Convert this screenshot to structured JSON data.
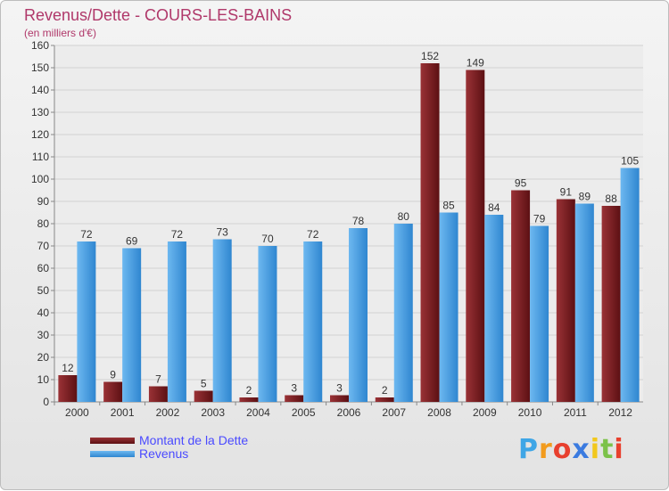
{
  "chart_data": {
    "type": "bar",
    "title": "Revenus/Dette - COURS-LES-BAINS",
    "subtitle": "(en milliers d'€)",
    "categories": [
      "2000",
      "2001",
      "2002",
      "2003",
      "2004",
      "2005",
      "2006",
      "2007",
      "2008",
      "2009",
      "2010",
      "2011",
      "2012"
    ],
    "series": [
      {
        "name": "Montant de la Dette",
        "color": "#7a1e22",
        "values": [
          12,
          9,
          7,
          5,
          2,
          3,
          3,
          2,
          152,
          149,
          95,
          91,
          88
        ]
      },
      {
        "name": "Revenus",
        "color": "#4aa3e8",
        "values": [
          72,
          69,
          72,
          73,
          70,
          72,
          78,
          80,
          85,
          84,
          79,
          89,
          105
        ]
      }
    ],
    "ylim": [
      0,
      160
    ],
    "yticks": [
      0,
      10,
      20,
      30,
      40,
      50,
      60,
      70,
      80,
      90,
      100,
      110,
      120,
      130,
      140,
      150,
      160
    ],
    "grid": true,
    "legend": "bottom-left"
  },
  "logo": {
    "letters": [
      "P",
      "r",
      "o",
      "x",
      "i",
      "t",
      "i"
    ],
    "colors": [
      "#3fa6e6",
      "#f29b1d",
      "#e8402e",
      "#3b7be0",
      "#f2c81d",
      "#7cc24a",
      "#e8402e"
    ]
  }
}
